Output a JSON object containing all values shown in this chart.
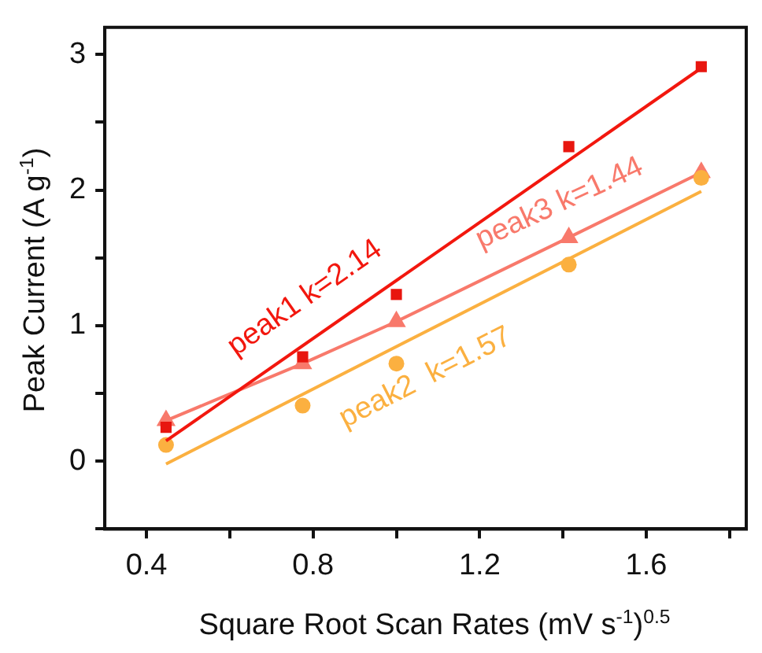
{
  "chart_data": {
    "type": "scatter",
    "xlabel": "Square Root Scan Rates (mV s$^{-1}$)$^{0.5}$",
    "ylabel": "Peak Current (A g$^{-1}$)",
    "xlim": [
      0.3,
      1.84
    ],
    "xticks": [
      0.4,
      {
        "value": 0.6,
        "label": null
      },
      0.8,
      {
        "value": 1.0,
        "label": null
      },
      1.2,
      {
        "value": 1.4,
        "label": null
      },
      1.6,
      {
        "value": 1.8,
        "label": null
      }
    ],
    "ylim": [
      -0.5,
      3.2
    ],
    "yticks": [
      {
        "value": -0.5,
        "label": null
      },
      0,
      {
        "value": 0.5,
        "label": null
      },
      1,
      {
        "value": 1.5,
        "label": null
      },
      2,
      {
        "value": 2.5,
        "label": null
      },
      3
    ],
    "grid": false,
    "legend": false,
    "series": [
      {
        "color": "#e8160f",
        "marker": "square",
        "x": [
          0.447,
          0.775,
          1.0,
          1.414,
          1.732
        ],
        "values": [
          0.25,
          0.77,
          1.23,
          2.32,
          2.91
        ]
      },
      {
        "type": "line",
        "name": "peak1 k=2.14",
        "color": "#f2170e",
        "marker": "none",
        "x": [
          0.447,
          1.732
        ],
        "values": [
          0.15,
          2.9
        ]
      },
      {
        "color": "#fbb040",
        "marker": "circle",
        "x": [
          0.447,
          0.775,
          1.0,
          1.414,
          1.732
        ],
        "values": [
          0.12,
          0.41,
          0.72,
          1.45,
          2.09
        ]
      },
      {
        "type": "line",
        "name": "peak2  k=1.57",
        "color": "#fbb040",
        "marker": "none",
        "x": [
          0.447,
          1.732
        ],
        "values": [
          -0.02,
          1.99
        ]
      },
      {
        "type": "line",
        "name": "peak3 k=1.44",
        "color": "#f8796b",
        "marker": "triangle",
        "x": [
          0.447,
          0.775,
          1.0,
          1.414,
          1.732
        ],
        "values": [
          0.3,
          0.72,
          1.03,
          1.65,
          2.13
        ]
      }
    ]
  }
}
